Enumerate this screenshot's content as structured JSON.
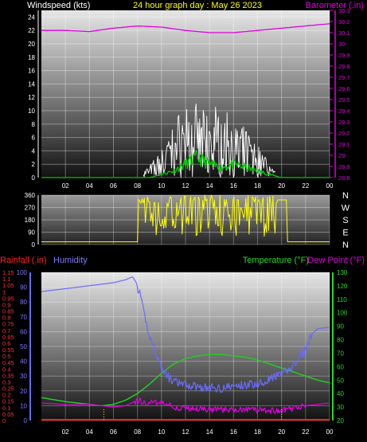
{
  "chart_data": [
    {
      "type": "line",
      "title": "24 hour graph day : May 26 2023",
      "ylabel_left": "Windspeed (kts)",
      "ylabel_right": "Barometer (.in)",
      "x_ticks": [
        "02",
        "04",
        "06",
        "08",
        "10",
        "12",
        "14",
        "16",
        "18",
        "20",
        "22",
        "00"
      ],
      "xlim": [
        0,
        24
      ],
      "y_left_ticks": [
        0,
        2,
        4,
        6,
        8,
        10,
        12,
        14,
        16,
        18,
        20,
        22,
        24
      ],
      "ylim_left": [
        0,
        25
      ],
      "y_right_ticks": [
        "28.8",
        "28.9",
        "29",
        "29.1",
        "29.2",
        "29.3",
        "29.4",
        "29.5",
        "29.6",
        "29.7",
        "29.8",
        "29.9",
        "30",
        "30.1",
        "30.2",
        "30.3"
      ],
      "ylim_right": [
        28.8,
        30.3
      ],
      "grid": true,
      "series": [
        {
          "name": "Barometer",
          "color": "#e000e0",
          "axis": "right",
          "x": [
            0,
            2,
            4,
            6,
            8,
            10,
            12,
            14,
            15,
            16,
            18,
            20,
            22,
            24
          ],
          "y": [
            30.12,
            30.12,
            30.11,
            30.14,
            30.16,
            30.15,
            30.12,
            30.1,
            30.1,
            30.1,
            30.12,
            30.14,
            30.16,
            30.18
          ]
        },
        {
          "name": "Wind gust",
          "color": "#ffffff",
          "axis": "left",
          "x": [
            8.5,
            9,
            10,
            10.5,
            11,
            11.5,
            12,
            12.5,
            13,
            13.5,
            14,
            14.5,
            15,
            15.5,
            16,
            16.5,
            17,
            17.5,
            18,
            18.5,
            19,
            19.5
          ],
          "y": [
            1,
            2,
            4,
            6,
            8,
            10,
            11,
            9,
            12,
            10,
            9,
            11,
            8,
            10,
            9,
            7,
            8,
            6,
            5,
            4,
            2,
            1
          ]
        },
        {
          "name": "Wind average",
          "color": "#00cc00",
          "axis": "left",
          "x": [
            0,
            9,
            10,
            11,
            12,
            13,
            14,
            15,
            16,
            17,
            18,
            19,
            20,
            24
          ],
          "y": [
            0,
            0,
            0.5,
            1,
            2,
            3,
            2,
            1.5,
            2,
            1.5,
            1,
            0.5,
            0,
            0
          ]
        }
      ]
    },
    {
      "type": "line",
      "ylabel_right": [
        "N",
        "W",
        "S",
        "E",
        "N"
      ],
      "x_ticks": [
        "02",
        "04",
        "06",
        "08",
        "10",
        "12",
        "14",
        "16",
        "18",
        "20",
        "22",
        "00"
      ],
      "xlim": [
        0,
        24
      ],
      "y_left_ticks": [
        0,
        90,
        180,
        270,
        360
      ],
      "ylim": [
        0,
        360
      ],
      "grid": true,
      "series": [
        {
          "name": "Wind direction",
          "color": "#ffff00",
          "x": [
            0,
            8,
            8.5,
            9,
            9.5,
            10,
            10.5,
            11,
            11.5,
            12,
            12.5,
            13,
            13.5,
            14,
            14.5,
            15,
            15.5,
            16,
            16.5,
            17,
            17.5,
            18,
            18.5,
            19,
            19.5,
            20,
            20.5,
            21,
            24
          ],
          "y": [
            20,
            20,
            320,
            60,
            330,
            120,
            300,
            180,
            330,
            90,
            290,
            200,
            340,
            150,
            310,
            100,
            300,
            170,
            320,
            130,
            290,
            200,
            330,
            80,
            320,
            320,
            20,
            20,
            20
          ]
        }
      ]
    },
    {
      "type": "line",
      "ylabel_left_outer": "Rainfall (.in)",
      "ylabel_left_inner": "Humidity",
      "ylabel_right_a": "Temperature (°F)",
      "ylabel_right_b": "Dew Point (°F)",
      "x_ticks": [
        "02",
        "04",
        "06",
        "08",
        "10",
        "12",
        "14",
        "16",
        "18",
        "20",
        "22",
        "00"
      ],
      "xlim": [
        0,
        24
      ],
      "y_rain_ticks": [
        "0",
        "0.05",
        "0.1",
        "0.15",
        "0.2",
        "0.25",
        "0.3",
        "0.35",
        "0.4",
        "0.45",
        "0.5",
        "0.55",
        "0.6",
        "0.65",
        "0.7",
        "0.75",
        "0.8",
        "0.85",
        "0.9",
        "0.95",
        "1",
        "1.05",
        "1.1",
        "1.15"
      ],
      "ylim_rain": [
        0,
        1.15
      ],
      "y_humidity_ticks": [
        0,
        10,
        20,
        30,
        40,
        50,
        60,
        70,
        80,
        90,
        100
      ],
      "ylim_humidity": [
        0,
        100
      ],
      "y_temp_ticks": [
        20,
        30,
        40,
        50,
        60,
        70,
        80,
        90,
        100,
        110,
        120,
        130
      ],
      "ylim_temp": [
        20,
        130
      ],
      "grid": true,
      "series": [
        {
          "name": "Humidity",
          "color": "#6a6aff",
          "axis": "humidity",
          "x": [
            0,
            2,
            4,
            6,
            7,
            7.6,
            7.9,
            8.2,
            8.6,
            9,
            9.5,
            10,
            10.5,
            11,
            12,
            13,
            14,
            15,
            16,
            17,
            18,
            19,
            20,
            21,
            22,
            22.5,
            23,
            24
          ],
          "y": [
            87,
            89,
            91,
            93,
            95,
            97,
            93,
            85,
            70,
            57,
            47,
            35,
            30,
            26,
            24,
            23,
            22,
            22,
            23,
            24,
            25,
            28,
            31,
            37,
            48,
            58,
            62,
            63
          ]
        },
        {
          "name": "Temperature",
          "color": "#22cc22",
          "axis": "temp",
          "x": [
            0,
            2,
            4,
            5,
            6,
            7,
            8,
            9,
            10,
            11,
            12,
            13,
            14,
            15,
            16,
            17,
            18,
            19,
            20,
            21,
            22,
            23,
            24
          ],
          "y": [
            37,
            34,
            32,
            31,
            32,
            35,
            40,
            47,
            55,
            62,
            66,
            68,
            69,
            69,
            68,
            67,
            65,
            62,
            59,
            56,
            53,
            50,
            48
          ]
        },
        {
          "name": "Dew Point",
          "color": "#e000e0",
          "axis": "temp",
          "x": [
            0,
            2,
            4,
            5,
            6,
            7,
            8,
            9,
            10,
            11,
            12,
            13,
            14,
            15,
            16,
            17,
            18,
            19,
            20,
            21,
            22,
            23,
            24
          ],
          "y": [
            33,
            32,
            32,
            31,
            30,
            31,
            35,
            33,
            33,
            30,
            29,
            28,
            28,
            28,
            28,
            28,
            28,
            27,
            27,
            29,
            31,
            32,
            33
          ]
        },
        {
          "name": "Rainfall",
          "color": "#ff2222",
          "axis": "rain",
          "x": [
            0,
            24
          ],
          "y": [
            0,
            0
          ]
        }
      ]
    }
  ]
}
